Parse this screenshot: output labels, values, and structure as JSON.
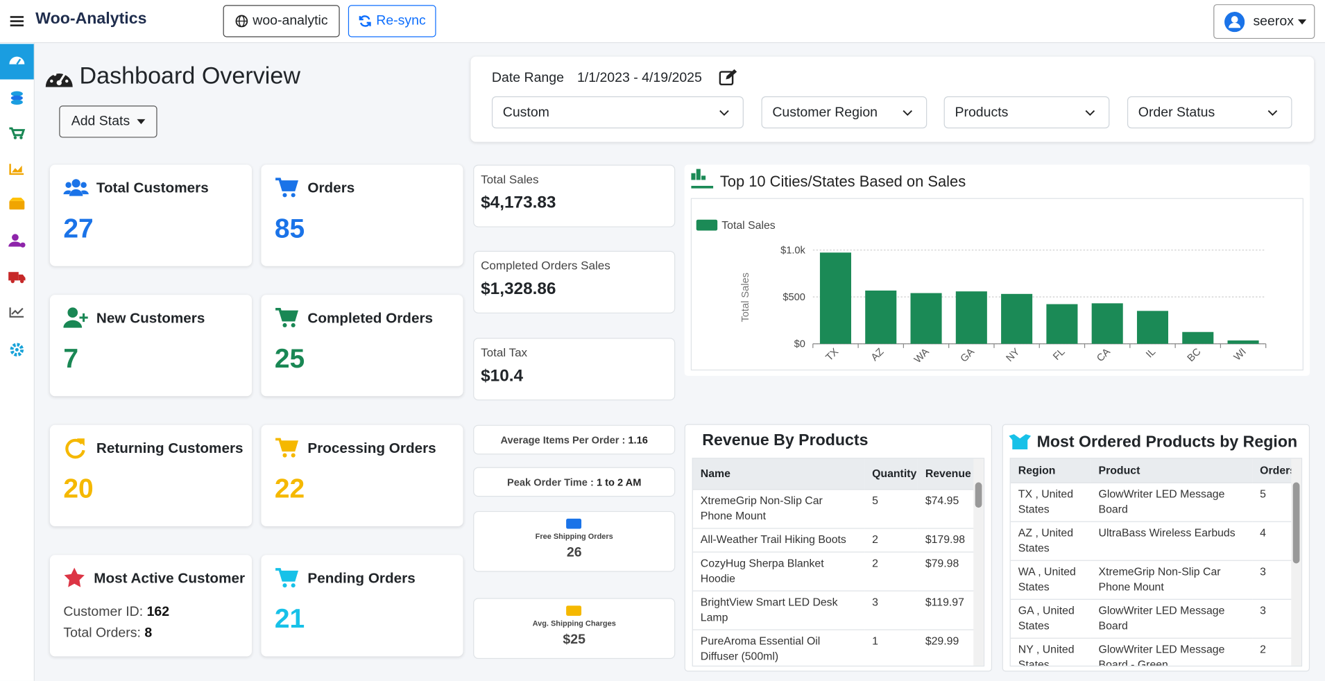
{
  "header": {
    "brand": "Woo-Analytics",
    "site": "woo-analytic",
    "resync": "Re-sync",
    "user": "seerox"
  },
  "page": {
    "title": "Dashboard Overview",
    "add_stats": "Add Stats"
  },
  "filters": {
    "date_label": "Date Range",
    "date_value": "1/1/2023 - 4/19/2025",
    "selects": [
      "Custom",
      "Customer Region",
      "Products",
      "Order Status"
    ]
  },
  "stats": [
    {
      "label": "Total Customers",
      "value": 27
    },
    {
      "label": "Orders",
      "value": 85
    },
    {
      "label": "New Customers",
      "value": 7
    },
    {
      "label": "Completed Orders",
      "value": 25
    },
    {
      "label": "Returning Customers",
      "value": 20
    },
    {
      "label": "Processing Orders",
      "value": 22
    },
    {
      "label": "Pending Orders",
      "value": 21
    }
  ],
  "most_active": {
    "label": "Most Active Customer",
    "id_label": "Customer ID:",
    "id": 162,
    "orders_label": "Total Orders:",
    "orders": 8
  },
  "sales": [
    {
      "label": "Total Sales",
      "value": "$4,173.83"
    },
    {
      "label": "Completed Orders Sales",
      "value": "$1,328.86"
    },
    {
      "label": "Total Tax",
      "value": "$10.4"
    }
  ],
  "metrics": [
    {
      "label": "Average Items Per Order :",
      "value": "1.16"
    },
    {
      "label": "Peak Order Time :",
      "value": "1 to 2 AM"
    },
    {
      "label": "Free Shipping Orders",
      "value": 26
    },
    {
      "label": "Avg. Shipping Charges",
      "value": "$25"
    }
  ],
  "chart_data": {
    "type": "bar",
    "title": "Top 10 Cities/States Based on Sales",
    "y_label": "Total Sales",
    "categories": [
      "TX",
      "AZ",
      "WA",
      "GA",
      "NY",
      "FL",
      "CA",
      "IL",
      "BC",
      "WI"
    ],
    "series": [
      {
        "name": "Total Sales",
        "color": "#1b8a56",
        "values": [
          973,
          568,
          541,
          559,
          532,
          423,
          432,
          351,
          126,
          36
        ]
      }
    ],
    "ylim": [
      0,
      1000
    ],
    "yticks": [
      {
        "value": 0,
        "label": "$0"
      },
      {
        "value": 500,
        "label": "$500"
      },
      {
        "value": 1000,
        "label": "$1.0k"
      }
    ],
    "grid": true,
    "legend": "top-left"
  },
  "revenue_table": {
    "title": "Revenue By Products",
    "columns": [
      "Name",
      "Quantity",
      "Revenue"
    ],
    "rows": [
      [
        "XtremeGrip Non-Slip Car Phone Mount",
        "5",
        "$74.95"
      ],
      [
        "All-Weather Trail Hiking Boots",
        "2",
        "$179.98"
      ],
      [
        "CozyHug Sherpa Blanket Hoodie",
        "2",
        "$79.98"
      ],
      [
        "BrightView Smart LED Desk Lamp",
        "3",
        "$119.97"
      ],
      [
        "PureAroma Essential Oil Diffuser (500ml)",
        "1",
        "$29.99"
      ]
    ]
  },
  "region_table": {
    "title": "Most Ordered Products by Region",
    "columns": [
      "Region",
      "Product",
      "Orders"
    ],
    "rows": [
      [
        "TX , United States",
        "GlowWriter LED Message Board",
        "5"
      ],
      [
        "AZ , United States",
        "UltraBass Wireless Earbuds",
        "4"
      ],
      [
        "WA , United States",
        "XtremeGrip Non-Slip Car Phone Mount",
        "3"
      ],
      [
        "GA , United States",
        "GlowWriter LED Message Board",
        "3"
      ],
      [
        "NY , United States",
        "GlowWriter LED Message Board - Green",
        "2"
      ]
    ]
  }
}
